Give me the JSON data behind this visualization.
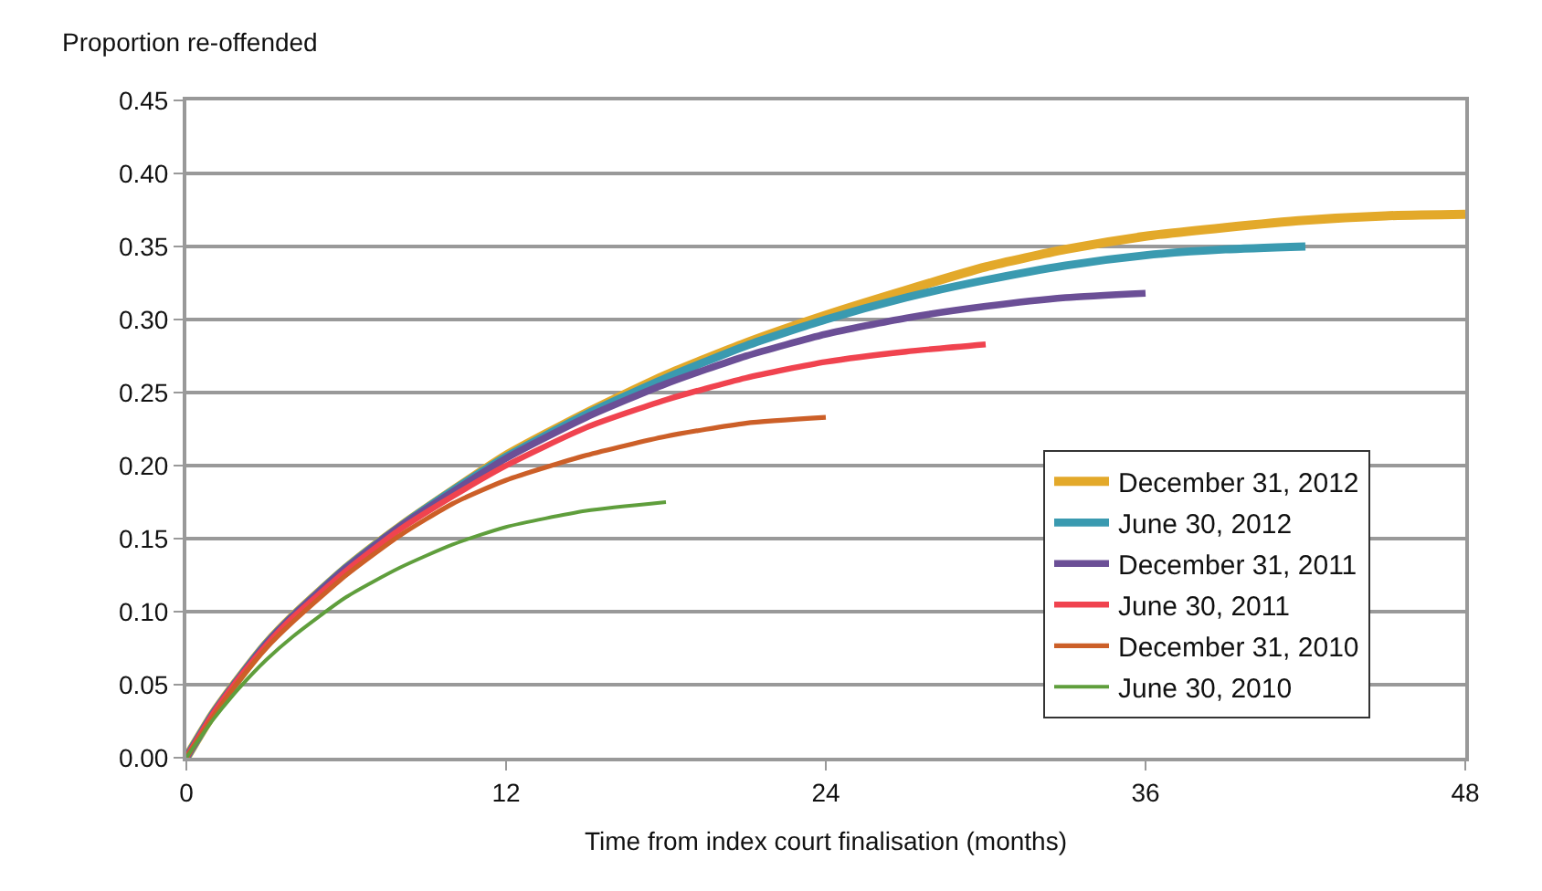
{
  "chart_data": {
    "type": "line",
    "xlabel": "Time from index court finalisation (months)",
    "ylabel": "Proportion re-offended",
    "xlim": [
      0,
      48
    ],
    "xticks": [
      0,
      12,
      24,
      36,
      48
    ],
    "ylim": [
      0,
      0.45
    ],
    "yticks": [
      {
        "value": 0,
        "label": "0.00"
      },
      {
        "value": 0.05,
        "label": "0.05"
      },
      {
        "value": 0.1,
        "label": "0.10"
      },
      {
        "value": 0.15,
        "label": "0.15"
      },
      {
        "value": 0.2,
        "label": "0.20"
      },
      {
        "value": 0.25,
        "label": "0.25"
      },
      {
        "value": 0.3,
        "label": "0.30"
      },
      {
        "value": 0.35,
        "label": "0.35"
      },
      {
        "value": 0.4,
        "label": "0.40"
      },
      {
        "value": 0.45,
        "label": "0.45"
      }
    ],
    "grid": "y",
    "legend": "bottom right",
    "marker": "none",
    "line_style": "solid",
    "series": [
      {
        "name": "December 31, 2012",
        "color": "#e3a92a",
        "x": [
          0,
          1,
          2,
          3,
          4,
          6,
          8,
          10,
          12,
          15,
          18,
          21,
          24,
          27,
          30,
          33,
          36,
          39,
          42,
          45,
          48
        ],
        "values": [
          0,
          0.03,
          0.055,
          0.078,
          0.097,
          0.13,
          0.158,
          0.183,
          0.207,
          0.236,
          0.262,
          0.284,
          0.303,
          0.32,
          0.336,
          0.348,
          0.357,
          0.363,
          0.368,
          0.371,
          0.372
        ]
      },
      {
        "name": "June 30, 2012",
        "color": "#3a9ab0",
        "x": [
          0,
          1,
          2,
          3,
          4,
          6,
          8,
          10,
          12,
          15,
          18,
          21,
          24,
          27,
          30,
          33,
          36,
          39,
          42
        ],
        "values": [
          0,
          0.03,
          0.055,
          0.078,
          0.097,
          0.13,
          0.158,
          0.183,
          0.206,
          0.235,
          0.26,
          0.282,
          0.3,
          0.315,
          0.327,
          0.337,
          0.344,
          0.348,
          0.35
        ]
      },
      {
        "name": "December 31, 2011",
        "color": "#6b4f96",
        "x": [
          0,
          1,
          2,
          3,
          4,
          6,
          8,
          10,
          12,
          15,
          18,
          21,
          24,
          27,
          30,
          33,
          36
        ],
        "values": [
          0,
          0.03,
          0.055,
          0.078,
          0.097,
          0.13,
          0.158,
          0.182,
          0.205,
          0.233,
          0.256,
          0.275,
          0.29,
          0.301,
          0.309,
          0.315,
          0.318
        ]
      },
      {
        "name": "June 30, 2011",
        "color": "#f0434f",
        "x": [
          0,
          1,
          2,
          3,
          4,
          6,
          8,
          10,
          12,
          15,
          18,
          21,
          24,
          27,
          30
        ],
        "values": [
          0,
          0.03,
          0.055,
          0.077,
          0.096,
          0.128,
          0.156,
          0.179,
          0.2,
          0.226,
          0.245,
          0.26,
          0.271,
          0.278,
          0.283
        ]
      },
      {
        "name": "December 31, 2010",
        "color": "#cc5f28",
        "x": [
          0,
          1,
          2,
          3,
          4,
          6,
          8,
          10,
          12,
          15,
          18,
          21,
          24
        ],
        "values": [
          0,
          0.028,
          0.053,
          0.075,
          0.093,
          0.125,
          0.152,
          0.174,
          0.19,
          0.207,
          0.22,
          0.229,
          0.233
        ]
      },
      {
        "name": "June 30, 2010",
        "color": "#5f9e3c",
        "x": [
          0,
          1,
          2,
          3,
          4,
          6,
          8,
          10,
          12,
          15,
          18
        ],
        "values": [
          0,
          0.026,
          0.048,
          0.067,
          0.083,
          0.11,
          0.13,
          0.146,
          0.158,
          0.169,
          0.175
        ]
      }
    ]
  }
}
